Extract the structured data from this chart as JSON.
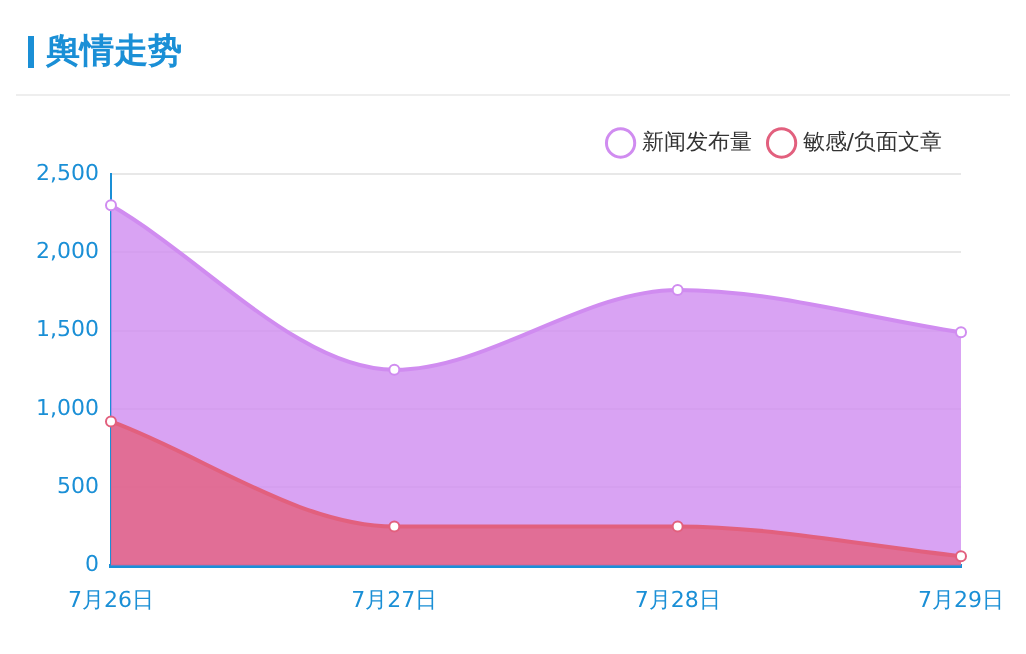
{
  "chart_data": {
    "type": "area",
    "title": "舆情走势",
    "categories": [
      "7月26日",
      "7月27日",
      "7月28日",
      "7月29日"
    ],
    "series": [
      {
        "name": "新闻发布量",
        "color": "#d08cf0",
        "values": [
          2300,
          1250,
          1760,
          1490
        ]
      },
      {
        "name": "敏感/负面文章",
        "color": "#e2607e",
        "values": [
          920,
          250,
          250,
          60
        ]
      }
    ],
    "ylim": [
      0,
      2500
    ],
    "yticks": [
      {
        "value": 0,
        "label": "0"
      },
      {
        "value": 500,
        "label": "500"
      },
      {
        "value": 1000,
        "label": "1,000"
      },
      {
        "value": 1500,
        "label": "1,500"
      },
      {
        "value": 2000,
        "label": "2,000"
      },
      {
        "value": 2500,
        "label": "2,500"
      }
    ],
    "grid": "y",
    "legend": "top right",
    "marker": "circle"
  }
}
